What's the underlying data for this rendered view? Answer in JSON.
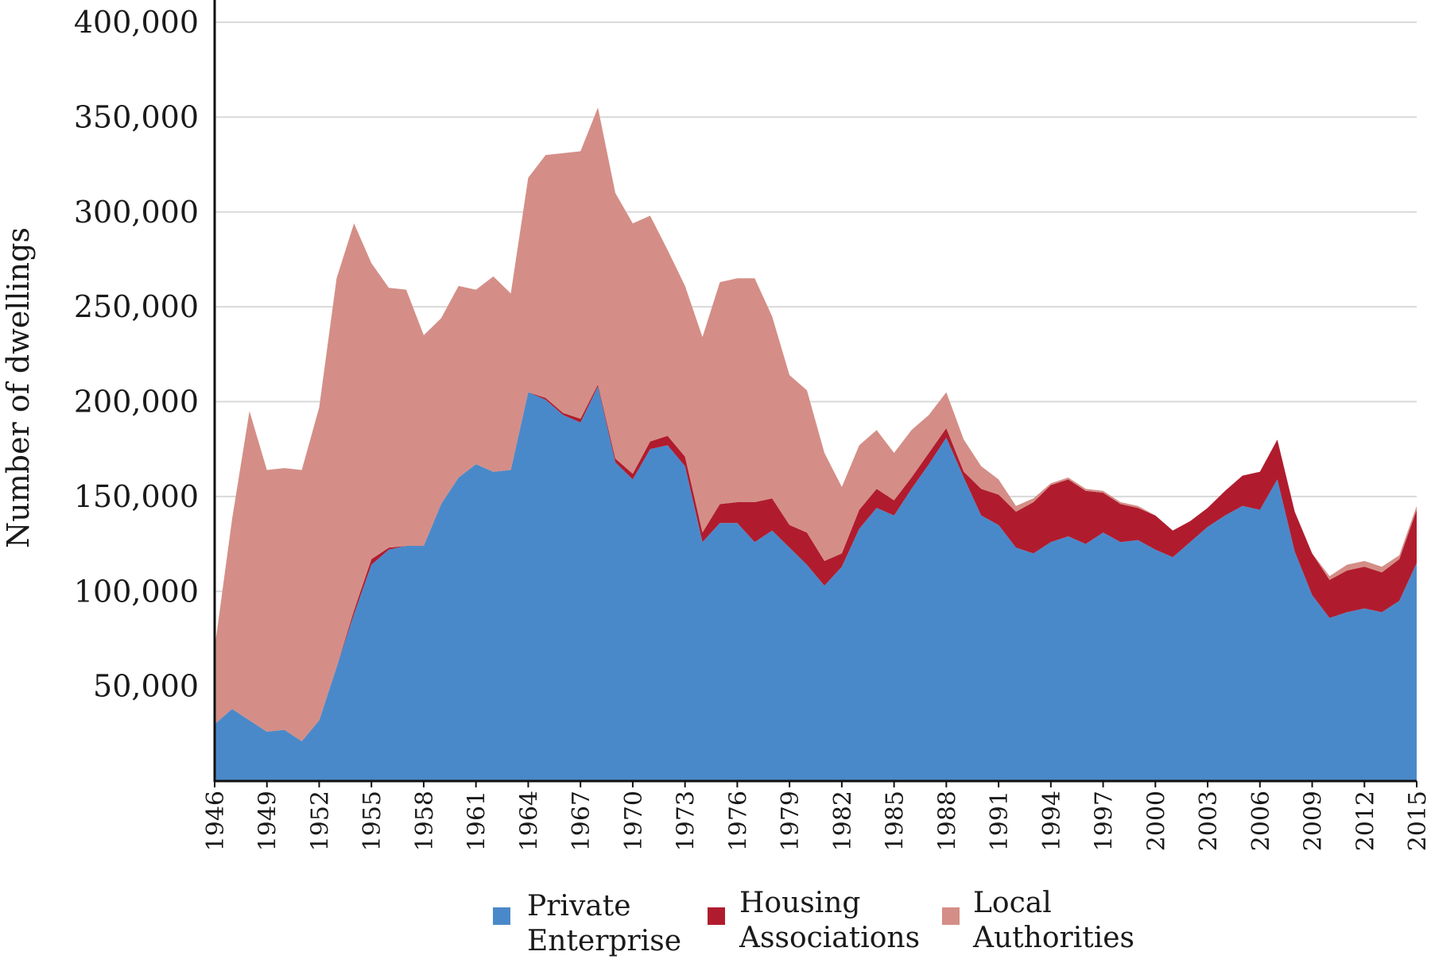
{
  "chart_data": {
    "type": "area",
    "stacked": true,
    "title": "",
    "xlabel": "",
    "ylabel": "Number of dwellings",
    "ylim": [
      0,
      400000
    ],
    "y_ticks": [
      {
        "value": 50000,
        "label": "50,000"
      },
      {
        "value": 100000,
        "label": "100,000"
      },
      {
        "value": 150000,
        "label": "150,000"
      },
      {
        "value": 200000,
        "label": "200,000"
      },
      {
        "value": 250000,
        "label": "250,000"
      },
      {
        "value": 300000,
        "label": "300,000"
      },
      {
        "value": 350000,
        "label": "350,000"
      },
      {
        "value": 400000,
        "label": "400,000"
      }
    ],
    "x_tick_labels": [
      "1946",
      "1949",
      "1952",
      "1955",
      "1958",
      "1961",
      "1964",
      "1967",
      "1970",
      "1973",
      "1976",
      "1979",
      "1982",
      "1985",
      "1988",
      "1991",
      "1994",
      "1997",
      "2000",
      "2003",
      "2006",
      "2009",
      "2012",
      "2015"
    ],
    "grid": true,
    "legend_position": "bottom",
    "x": [
      1946,
      1947,
      1948,
      1949,
      1950,
      1951,
      1952,
      1953,
      1954,
      1955,
      1956,
      1957,
      1958,
      1959,
      1960,
      1961,
      1962,
      1963,
      1964,
      1965,
      1966,
      1967,
      1968,
      1969,
      1970,
      1971,
      1972,
      1973,
      1974,
      1975,
      1976,
      1977,
      1978,
      1979,
      1980,
      1981,
      1982,
      1983,
      1984,
      1985,
      1986,
      1987,
      1988,
      1989,
      1990,
      1991,
      1992,
      1993,
      1994,
      1995,
      1996,
      1997,
      1998,
      1999,
      2000,
      2001,
      2002,
      2003,
      2004,
      2005,
      2006,
      2007,
      2008,
      2009,
      2010,
      2011,
      2012,
      2013,
      2014,
      2015
    ],
    "series": [
      {
        "name": "Private Enterprise",
        "color": "#4a89c9",
        "values": [
          30000,
          38000,
          32000,
          26000,
          27000,
          21000,
          32000,
          60000,
          88000,
          114000,
          122000,
          124000,
          124000,
          146000,
          160000,
          167000,
          163000,
          164000,
          205000,
          201000,
          193000,
          189000,
          208000,
          168000,
          159000,
          175000,
          177000,
          166000,
          126000,
          136000,
          136000,
          126000,
          132000,
          123000,
          114000,
          103000,
          113000,
          133000,
          144000,
          140000,
          154000,
          167000,
          181000,
          160000,
          140000,
          135000,
          123000,
          120000,
          126000,
          129000,
          125000,
          131000,
          126000,
          127000,
          122000,
          118000,
          126000,
          134000,
          140000,
          145000,
          143000,
          159000,
          121000,
          98000,
          86000,
          89000,
          91000,
          89000,
          95000,
          115000
        ]
      },
      {
        "name": "Housing Associations",
        "color": "#b01c2e",
        "values": [
          0,
          0,
          0,
          0,
          0,
          0,
          0,
          0,
          2000,
          3000,
          1000,
          0,
          0,
          0,
          0,
          0,
          0,
          0,
          0,
          1000,
          1000,
          2000,
          1000,
          2000,
          3000,
          4000,
          5000,
          5000,
          5000,
          10000,
          11000,
          21000,
          17000,
          12000,
          17000,
          13000,
          7000,
          10000,
          10000,
          8000,
          6000,
          6000,
          5000,
          3000,
          14000,
          16000,
          19000,
          27000,
          30000,
          30000,
          28000,
          21000,
          20000,
          17000,
          18000,
          14000,
          11000,
          10000,
          13000,
          16000,
          20000,
          21000,
          21000,
          22000,
          20000,
          22000,
          22000,
          21000,
          22000,
          28000
        ]
      },
      {
        "name": "Local Authorities",
        "color": "#d48e87",
        "values": [
          40000,
          100000,
          163000,
          138000,
          138000,
          143000,
          165000,
          205000,
          204000,
          156000,
          137000,
          135000,
          111000,
          98000,
          101000,
          92000,
          103000,
          93000,
          113000,
          128000,
          137000,
          141000,
          146000,
          140000,
          132000,
          119000,
          98000,
          90000,
          103000,
          117000,
          118000,
          118000,
          96000,
          79000,
          75000,
          57000,
          35000,
          34000,
          31000,
          25000,
          25000,
          20000,
          19000,
          17000,
          12000,
          8000,
          3000,
          2000,
          1000,
          1000,
          1000,
          1000,
          1000,
          1000,
          0,
          0,
          0,
          0,
          0,
          0,
          0,
          0,
          0,
          0,
          2000,
          3000,
          3000,
          3000,
          2000,
          2000
        ]
      }
    ]
  }
}
